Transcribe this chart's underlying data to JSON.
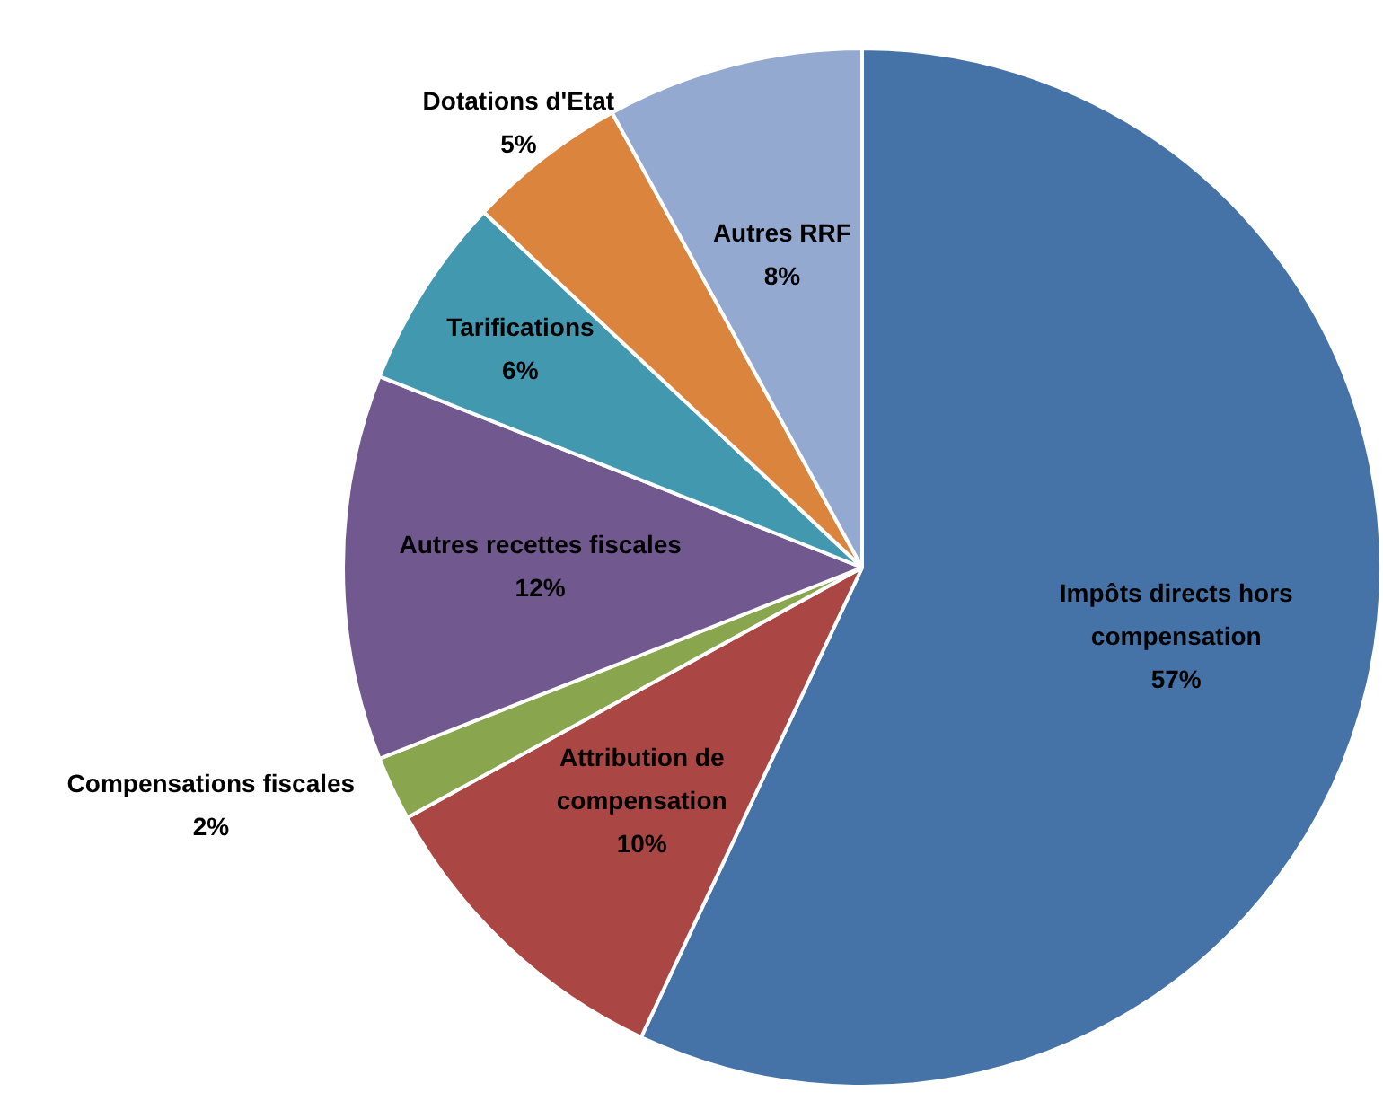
{
  "chart_data": {
    "type": "pie",
    "categories": [
      "Impôts directs hors compensation",
      "Attribution de compensation",
      "Compensations fiscales",
      "Autres recettes fiscales",
      "Tarifications",
      "Dotations d'Etat",
      "Autres RRF"
    ],
    "values": [
      57,
      10,
      2,
      12,
      6,
      5,
      8
    ],
    "value_labels": [
      "57%",
      "10%",
      "2%",
      "12%",
      "6%",
      "5%",
      "8%"
    ],
    "colors": [
      "#4572a7",
      "#aa4643",
      "#89a54e",
      "#71588f",
      "#4198af",
      "#db843d",
      "#93a9cf"
    ],
    "legend": false
  }
}
